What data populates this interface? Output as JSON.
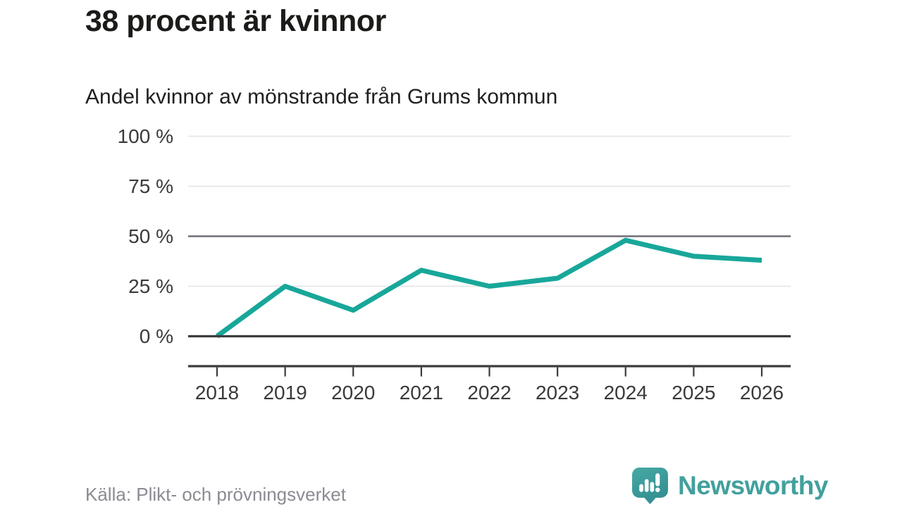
{
  "header": {
    "title": "38 procent är kvinnor",
    "subtitle": "Andel kvinnor av mönstrande från Grums kommun"
  },
  "chart_data": {
    "type": "line",
    "title": "38 procent är kvinnor",
    "subtitle": "Andel kvinnor av mönstrande från Grums kommun",
    "categories": [
      "2018",
      "2019",
      "2020",
      "2021",
      "2022",
      "2023",
      "2024",
      "2025",
      "2026"
    ],
    "series": [
      {
        "name": "Andel kvinnor av mönstrande",
        "values": [
          0,
          25,
          13,
          33,
          25,
          29,
          48,
          40,
          38
        ]
      }
    ],
    "unit": "%",
    "xlabel": "",
    "ylabel": "",
    "ylim": [
      0,
      100
    ],
    "yticks": [
      0,
      25,
      50,
      75,
      100
    ],
    "ytick_labels": [
      "0 %",
      "25 %",
      "50 %",
      "75 %",
      "100 %"
    ],
    "grid": "horizontal",
    "emphasized_gridlines": [
      0,
      50
    ],
    "legend_position": "none",
    "line_color": "#18a79a"
  },
  "footer": {
    "source": "Källa: Plikt- och prövningsverket"
  },
  "logo": {
    "brand": "Newsworthy",
    "mark_icon": "bar-chart-speech-bubble-icon",
    "color": "#42a09d"
  },
  "colors": {
    "title": "#1b1b19",
    "line": "#18a79a",
    "grid_light": "#e3e3e3",
    "grid_mid": "#6e6e78",
    "grid_zero": "#3c3c3c",
    "axis": "#3c3c3c",
    "tick_label": "#3a3a3a",
    "source_text": "#8b8b93"
  }
}
